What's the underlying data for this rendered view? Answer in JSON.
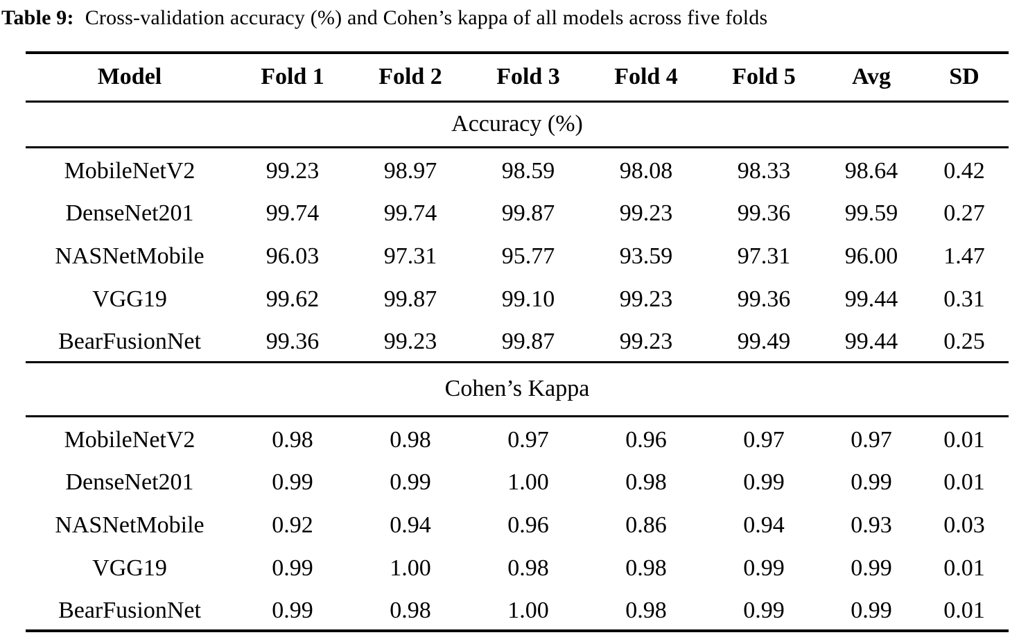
{
  "caption": {
    "label": "Table 9:",
    "text": "Cross-validation accuracy (%) and Cohen’s kappa of all models across five folds"
  },
  "table": {
    "columns": [
      "Model",
      "Fold 1",
      "Fold 2",
      "Fold 3",
      "Fold 4",
      "Fold 5",
      "Avg",
      "SD"
    ],
    "sections": [
      {
        "header": "Accuracy (%)",
        "rows": [
          {
            "model": "MobileNetV2",
            "values": [
              "99.23",
              "98.97",
              "98.59",
              "98.08",
              "98.33",
              "98.64",
              "0.42"
            ]
          },
          {
            "model": "DenseNet201",
            "values": [
              "99.74",
              "99.74",
              "99.87",
              "99.23",
              "99.36",
              "99.59",
              "0.27"
            ]
          },
          {
            "model": "NASNetMobile",
            "values": [
              "96.03",
              "97.31",
              "95.77",
              "93.59",
              "97.31",
              "96.00",
              "1.47"
            ]
          },
          {
            "model": "VGG19",
            "values": [
              "99.62",
              "99.87",
              "99.10",
              "99.23",
              "99.36",
              "99.44",
              "0.31"
            ]
          },
          {
            "model": "BearFusionNet",
            "values": [
              "99.36",
              "99.23",
              "99.87",
              "99.23",
              "99.49",
              "99.44",
              "0.25"
            ]
          }
        ]
      },
      {
        "header": "Cohen’s Kappa",
        "rows": [
          {
            "model": "MobileNetV2",
            "values": [
              "0.98",
              "0.98",
              "0.97",
              "0.96",
              "0.97",
              "0.97",
              "0.01"
            ]
          },
          {
            "model": "DenseNet201",
            "values": [
              "0.99",
              "0.99",
              "1.00",
              "0.98",
              "0.99",
              "0.99",
              "0.01"
            ]
          },
          {
            "model": "NASNetMobile",
            "values": [
              "0.92",
              "0.94",
              "0.96",
              "0.86",
              "0.94",
              "0.93",
              "0.03"
            ]
          },
          {
            "model": "VGG19",
            "values": [
              "0.99",
              "1.00",
              "0.98",
              "0.98",
              "0.99",
              "0.99",
              "0.01"
            ]
          },
          {
            "model": "BearFusionNet",
            "values": [
              "0.99",
              "0.98",
              "1.00",
              "0.98",
              "0.99",
              "0.99",
              "0.01"
            ]
          }
        ]
      }
    ]
  }
}
